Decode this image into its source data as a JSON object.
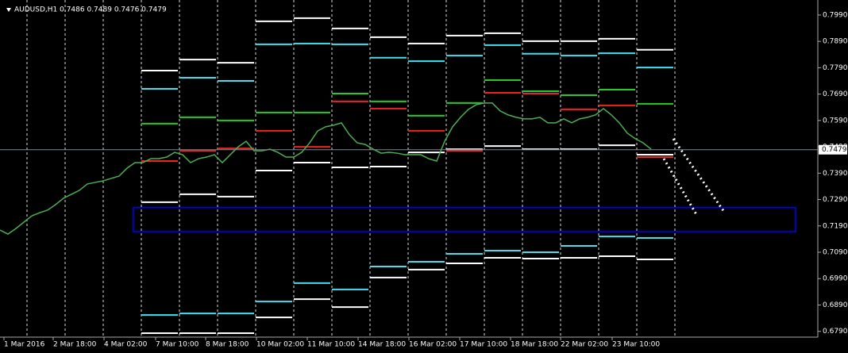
{
  "chart_data": {
    "type": "line",
    "title": "AUDUSD,H1 0.7486 0.7489 0.7476 0.7479",
    "current_price": {
      "value": 0.7479,
      "label": "0.7479"
    },
    "xlim": [
      0,
      103
    ],
    "xticks": [
      {
        "value": 0.5,
        "label": "1 Mar 2016"
      },
      {
        "value": 6.7,
        "label": "2 Mar 18:00"
      },
      {
        "value": 13.1,
        "label": "4 Mar 02:00"
      },
      {
        "value": 19.6,
        "label": "7 Mar 10:00"
      },
      {
        "value": 25.9,
        "label": "8 Mar 18:00"
      },
      {
        "value": 32.3,
        "label": "10 Mar 02:00"
      },
      {
        "value": 38.7,
        "label": "11 Mar 10:00"
      },
      {
        "value": 45.1,
        "label": "14 Mar 18:00"
      },
      {
        "value": 51.5,
        "label": "16 Mar 02:00"
      },
      {
        "value": 57.9,
        "label": "17 Mar 10:00"
      },
      {
        "value": 64.3,
        "label": "18 Mar 18:00"
      },
      {
        "value": 70.6,
        "label": "22 Mar 02:00"
      },
      {
        "value": 77.1,
        "label": "23 Mar 10:00"
      }
    ],
    "ylim": [
      0.6768,
      0.8047
    ],
    "yticks": [
      {
        "value": 0.799,
        "label": "0.7990"
      },
      {
        "value": 0.789,
        "label": "0.7890"
      },
      {
        "value": 0.779,
        "label": "0.7790"
      },
      {
        "value": 0.769,
        "label": "0.7690"
      },
      {
        "value": 0.759,
        "label": "0.7590"
      },
      {
        "value": 0.749,
        "label": "0.7490"
      },
      {
        "value": 0.739,
        "label": "0.7390"
      },
      {
        "value": 0.729,
        "label": "0.7290"
      },
      {
        "value": 0.719,
        "label": "0.7190"
      },
      {
        "value": 0.709,
        "label": "0.7090"
      },
      {
        "value": 0.699,
        "label": "0.6990"
      },
      {
        "value": 0.689,
        "label": "0.6890"
      },
      {
        "value": 0.679,
        "label": "0.6790"
      }
    ],
    "series": [
      {
        "color": "#4caf50",
        "values": [
          0.7174,
          0.7159,
          0.718,
          0.7204,
          0.7228,
          0.724,
          0.725,
          0.7271,
          0.7295,
          0.731,
          0.7325,
          0.7349,
          0.7355,
          0.7361,
          0.737,
          0.7379,
          0.7409,
          0.743,
          0.743,
          0.7445,
          0.7445,
          0.7451,
          0.7469,
          0.746,
          0.743,
          0.7445,
          0.7451,
          0.746,
          0.743,
          0.746,
          0.749,
          0.7511,
          0.7475,
          0.7475,
          0.7481,
          0.7469,
          0.7451,
          0.7451,
          0.7469,
          0.7505,
          0.755,
          0.7566,
          0.7572,
          0.7581,
          0.7536,
          0.7505,
          0.7499,
          0.7481,
          0.7466,
          0.7469,
          0.7466,
          0.746,
          0.746,
          0.746,
          0.7445,
          0.7436,
          0.7511,
          0.7566,
          0.7602,
          0.7632,
          0.765,
          0.7656,
          0.7656,
          0.7626,
          0.7611,
          0.7602,
          0.7596,
          0.7596,
          0.7602,
          0.7581,
          0.7581,
          0.7596,
          0.7581,
          0.7596,
          0.7602,
          0.7611,
          0.7635,
          0.7611,
          0.7581,
          0.7542,
          0.7521,
          0.7505,
          0.7481
        ]
      }
    ],
    "levels": [
      {
        "color": "#ffffff",
        "values": [
          0.7779,
          0.7821,
          0.7809,
          0.7966,
          0.7978,
          0.7939,
          0.7906,
          0.7882,
          0.7912,
          0.7921,
          0.7891,
          0.7891,
          0.79,
          0.7858
        ]
      },
      {
        "color": "#40e0f0",
        "values": [
          0.771,
          0.7752,
          0.774,
          0.7879,
          0.7882,
          0.7879,
          0.7828,
          0.7815,
          0.7836,
          0.7876,
          0.7843,
          0.7836,
          0.7845,
          0.7791
        ]
      },
      {
        "color": "#22cc22",
        "values": [
          0.7578,
          0.7602,
          0.759,
          0.762,
          0.762,
          0.7692,
          0.7662,
          0.7608,
          0.7656,
          0.7743,
          0.7701,
          0.7686,
          0.7707,
          0.7653
        ]
      },
      {
        "color": "#ee2222",
        "values": [
          0.7436,
          0.7475,
          0.7484,
          0.7551,
          0.749,
          0.7662,
          0.7635,
          0.7551,
          0.7475,
          0.7695,
          0.7692,
          0.7632,
          0.7647,
          0.7451
        ]
      },
      {
        "color": "#ffffff",
        "values": [
          0.728,
          0.731,
          0.7301,
          0.74,
          0.743,
          0.7412,
          0.7415,
          0.7469,
          0.7481,
          0.7493,
          0.7481,
          0.7481,
          0.7496,
          0.746
        ]
      },
      {
        "color": "#40e0f0",
        "values": [
          0.6852,
          0.6858,
          0.6858,
          0.6903,
          0.6973,
          0.6949,
          0.7036,
          0.7054,
          0.7084,
          0.7096,
          0.709,
          0.7114,
          0.715,
          0.7144
        ]
      },
      {
        "color": "#ffffff",
        "values": [
          0.6783,
          0.6783,
          0.6783,
          0.6843,
          0.6912,
          0.6882,
          0.6994,
          0.7024,
          0.7048,
          0.7069,
          0.7066,
          0.7069,
          0.7075,
          0.7063
        ]
      }
    ],
    "zone": {
      "color": "#0000ff",
      "xlim": [
        16.8,
        100.2
      ],
      "ylim": [
        0.7168,
        0.7259
      ]
    }
  }
}
